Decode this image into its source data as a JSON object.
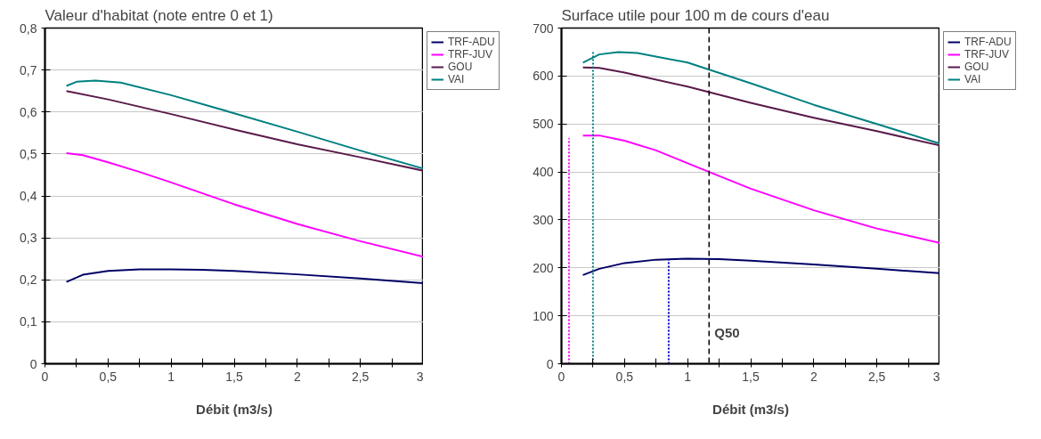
{
  "chart_data": [
    {
      "type": "line",
      "title": "Valeur d'habitat (note entre 0 et 1)",
      "xlabel": "Débit (m3/s)",
      "xlim": [
        0,
        3
      ],
      "ylim": [
        0,
        0.8
      ],
      "xticks": [
        0,
        {
          "value": 0.25,
          "label": null
        },
        {
          "value": 0.5,
          "label": "0,5"
        },
        {
          "value": 0.75,
          "label": null
        },
        1,
        {
          "value": 1.25,
          "label": null
        },
        {
          "value": 1.5,
          "label": "1,5"
        },
        {
          "value": 1.75,
          "label": null
        },
        2,
        {
          "value": 2.25,
          "label": null
        },
        {
          "value": 2.5,
          "label": "2,5"
        },
        {
          "value": 2.75,
          "label": null
        },
        3
      ],
      "yticks": [
        0,
        {
          "value": 0.1,
          "label": "0,1"
        },
        {
          "value": 0.2,
          "label": "0,2"
        },
        {
          "value": 0.3,
          "label": "0,3"
        },
        {
          "value": 0.4,
          "label": "0,4"
        },
        {
          "value": 0.5,
          "label": "0,5"
        },
        {
          "value": 0.6,
          "label": "0,6"
        },
        {
          "value": 0.7,
          "label": "0,7"
        },
        {
          "value": 0.8,
          "label": "0,8"
        }
      ],
      "grid": "y",
      "legend": "top right",
      "series": [
        {
          "name": "TRF-ADU",
          "color": "#000066",
          "x": [
            0.17,
            0.3,
            0.5,
            0.75,
            1,
            1.25,
            1.5,
            2,
            2.5,
            3
          ],
          "values": [
            0.195,
            0.212,
            0.221,
            0.225,
            0.225,
            0.224,
            0.221,
            0.213,
            0.203,
            0.192
          ]
        },
        {
          "name": "TRF-JUV",
          "color": "#ff00ff",
          "x": [
            0.17,
            0.3,
            0.5,
            0.75,
            1,
            1.5,
            2,
            2.5,
            3
          ],
          "values": [
            0.502,
            0.497,
            0.48,
            0.457,
            0.432,
            0.38,
            0.333,
            0.292,
            0.255
          ]
        },
        {
          "name": "GOU",
          "color": "#5a1a4a",
          "x": [
            0.17,
            0.5,
            1,
            1.5,
            2,
            2.5,
            3
          ],
          "values": [
            0.65,
            0.63,
            0.595,
            0.558,
            0.523,
            0.492,
            0.46
          ]
        },
        {
          "name": "VAI",
          "color": "#008080",
          "x": [
            0.17,
            0.25,
            0.4,
            0.6,
            1,
            1.5,
            2,
            2.5,
            3
          ],
          "values": [
            0.662,
            0.672,
            0.675,
            0.67,
            0.64,
            0.597,
            0.553,
            0.508,
            0.465
          ]
        }
      ]
    },
    {
      "type": "line",
      "title": "Surface utile pour 100 m de cours d'eau",
      "xlabel": "Débit (m3/s)",
      "xlim": [
        0,
        3
      ],
      "ylim": [
        0,
        700
      ],
      "xticks": [
        0,
        {
          "value": 0.25,
          "label": null
        },
        {
          "value": 0.5,
          "label": "0,5"
        },
        {
          "value": 0.75,
          "label": null
        },
        1,
        {
          "value": 1.25,
          "label": null
        },
        {
          "value": 1.5,
          "label": "1,5"
        },
        {
          "value": 1.75,
          "label": null
        },
        2,
        {
          "value": 2.25,
          "label": null
        },
        {
          "value": 2.5,
          "label": "2,5"
        },
        {
          "value": 2.75,
          "label": null
        },
        3
      ],
      "yticks": [
        0,
        100,
        200,
        300,
        400,
        500,
        600,
        700
      ],
      "grid": "y",
      "legend": "top right",
      "series": [
        {
          "name": "TRF-ADU",
          "color": "#000066",
          "x": [
            0.17,
            0.3,
            0.5,
            0.75,
            1,
            1.25,
            1.5,
            2,
            2.5,
            3
          ],
          "values": [
            185,
            198,
            210,
            217,
            219,
            218,
            215,
            207,
            198,
            189
          ]
        },
        {
          "name": "TRF-JUV",
          "color": "#ff00ff",
          "x": [
            0.17,
            0.3,
            0.5,
            0.75,
            1,
            1.5,
            2,
            2.5,
            3
          ],
          "values": [
            476,
            476,
            465,
            445,
            418,
            365,
            320,
            282,
            252
          ]
        },
        {
          "name": "GOU",
          "color": "#5a1a4a",
          "x": [
            0.17,
            0.3,
            0.5,
            1,
            1.5,
            2,
            2.5,
            3
          ],
          "values": [
            618,
            617,
            607,
            578,
            544,
            513,
            485,
            455
          ]
        },
        {
          "name": "VAI",
          "color": "#008080",
          "x": [
            0.17,
            0.3,
            0.45,
            0.6,
            1,
            1.5,
            2,
            2.5,
            3
          ],
          "values": [
            628,
            645,
            650,
            648,
            628,
            585,
            540,
            500,
            459
          ]
        },
        {
          "color": "#ff00ff",
          "line_style": "dotted",
          "x": [
            0.06,
            0.06
          ],
          "values": [
            0,
            470
          ]
        },
        {
          "color": "#008080",
          "line_style": "dotted",
          "x": [
            0.25,
            0.25
          ],
          "values": [
            0,
            650
          ]
        },
        {
          "color": "#0000cc",
          "line_style": "dotted",
          "x": [
            0.85,
            0.85
          ],
          "values": [
            0,
            217
          ]
        }
      ],
      "ref_lines": [
        {
          "axis": "x",
          "value": 1.17,
          "label": "Q50",
          "color": "#000000",
          "line_style": "dashed"
        }
      ]
    }
  ]
}
